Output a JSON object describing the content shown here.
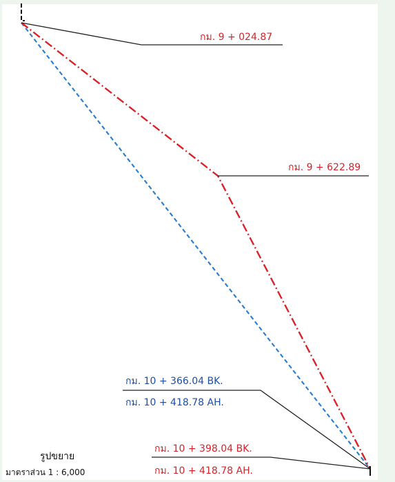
{
  "colors": {
    "paper": "#ffffff",
    "frame_bg": "#eef5ee",
    "red": "#d8232a",
    "blue": "#1f4fa3",
    "blue_dash": "#2f7fd0",
    "leader": "#222222"
  },
  "labels": {
    "km_9_024": "กม. 9 + 024.87",
    "km_9_622": "กม. 9 + 622.89",
    "km_10_366_bk": "กม. 10 + 366.04 BK.",
    "km_10_418_ah_blue": "กม. 10 + 418.78 AH.",
    "km_10_398_bk": "กม. 10 + 398.04 BK.",
    "km_10_418_ah_red": "กม. 10 + 418.78 AH."
  },
  "legend": {
    "title": "รูปขยาย",
    "scale": "มาตราส่วน 1 : 6,000"
  }
}
